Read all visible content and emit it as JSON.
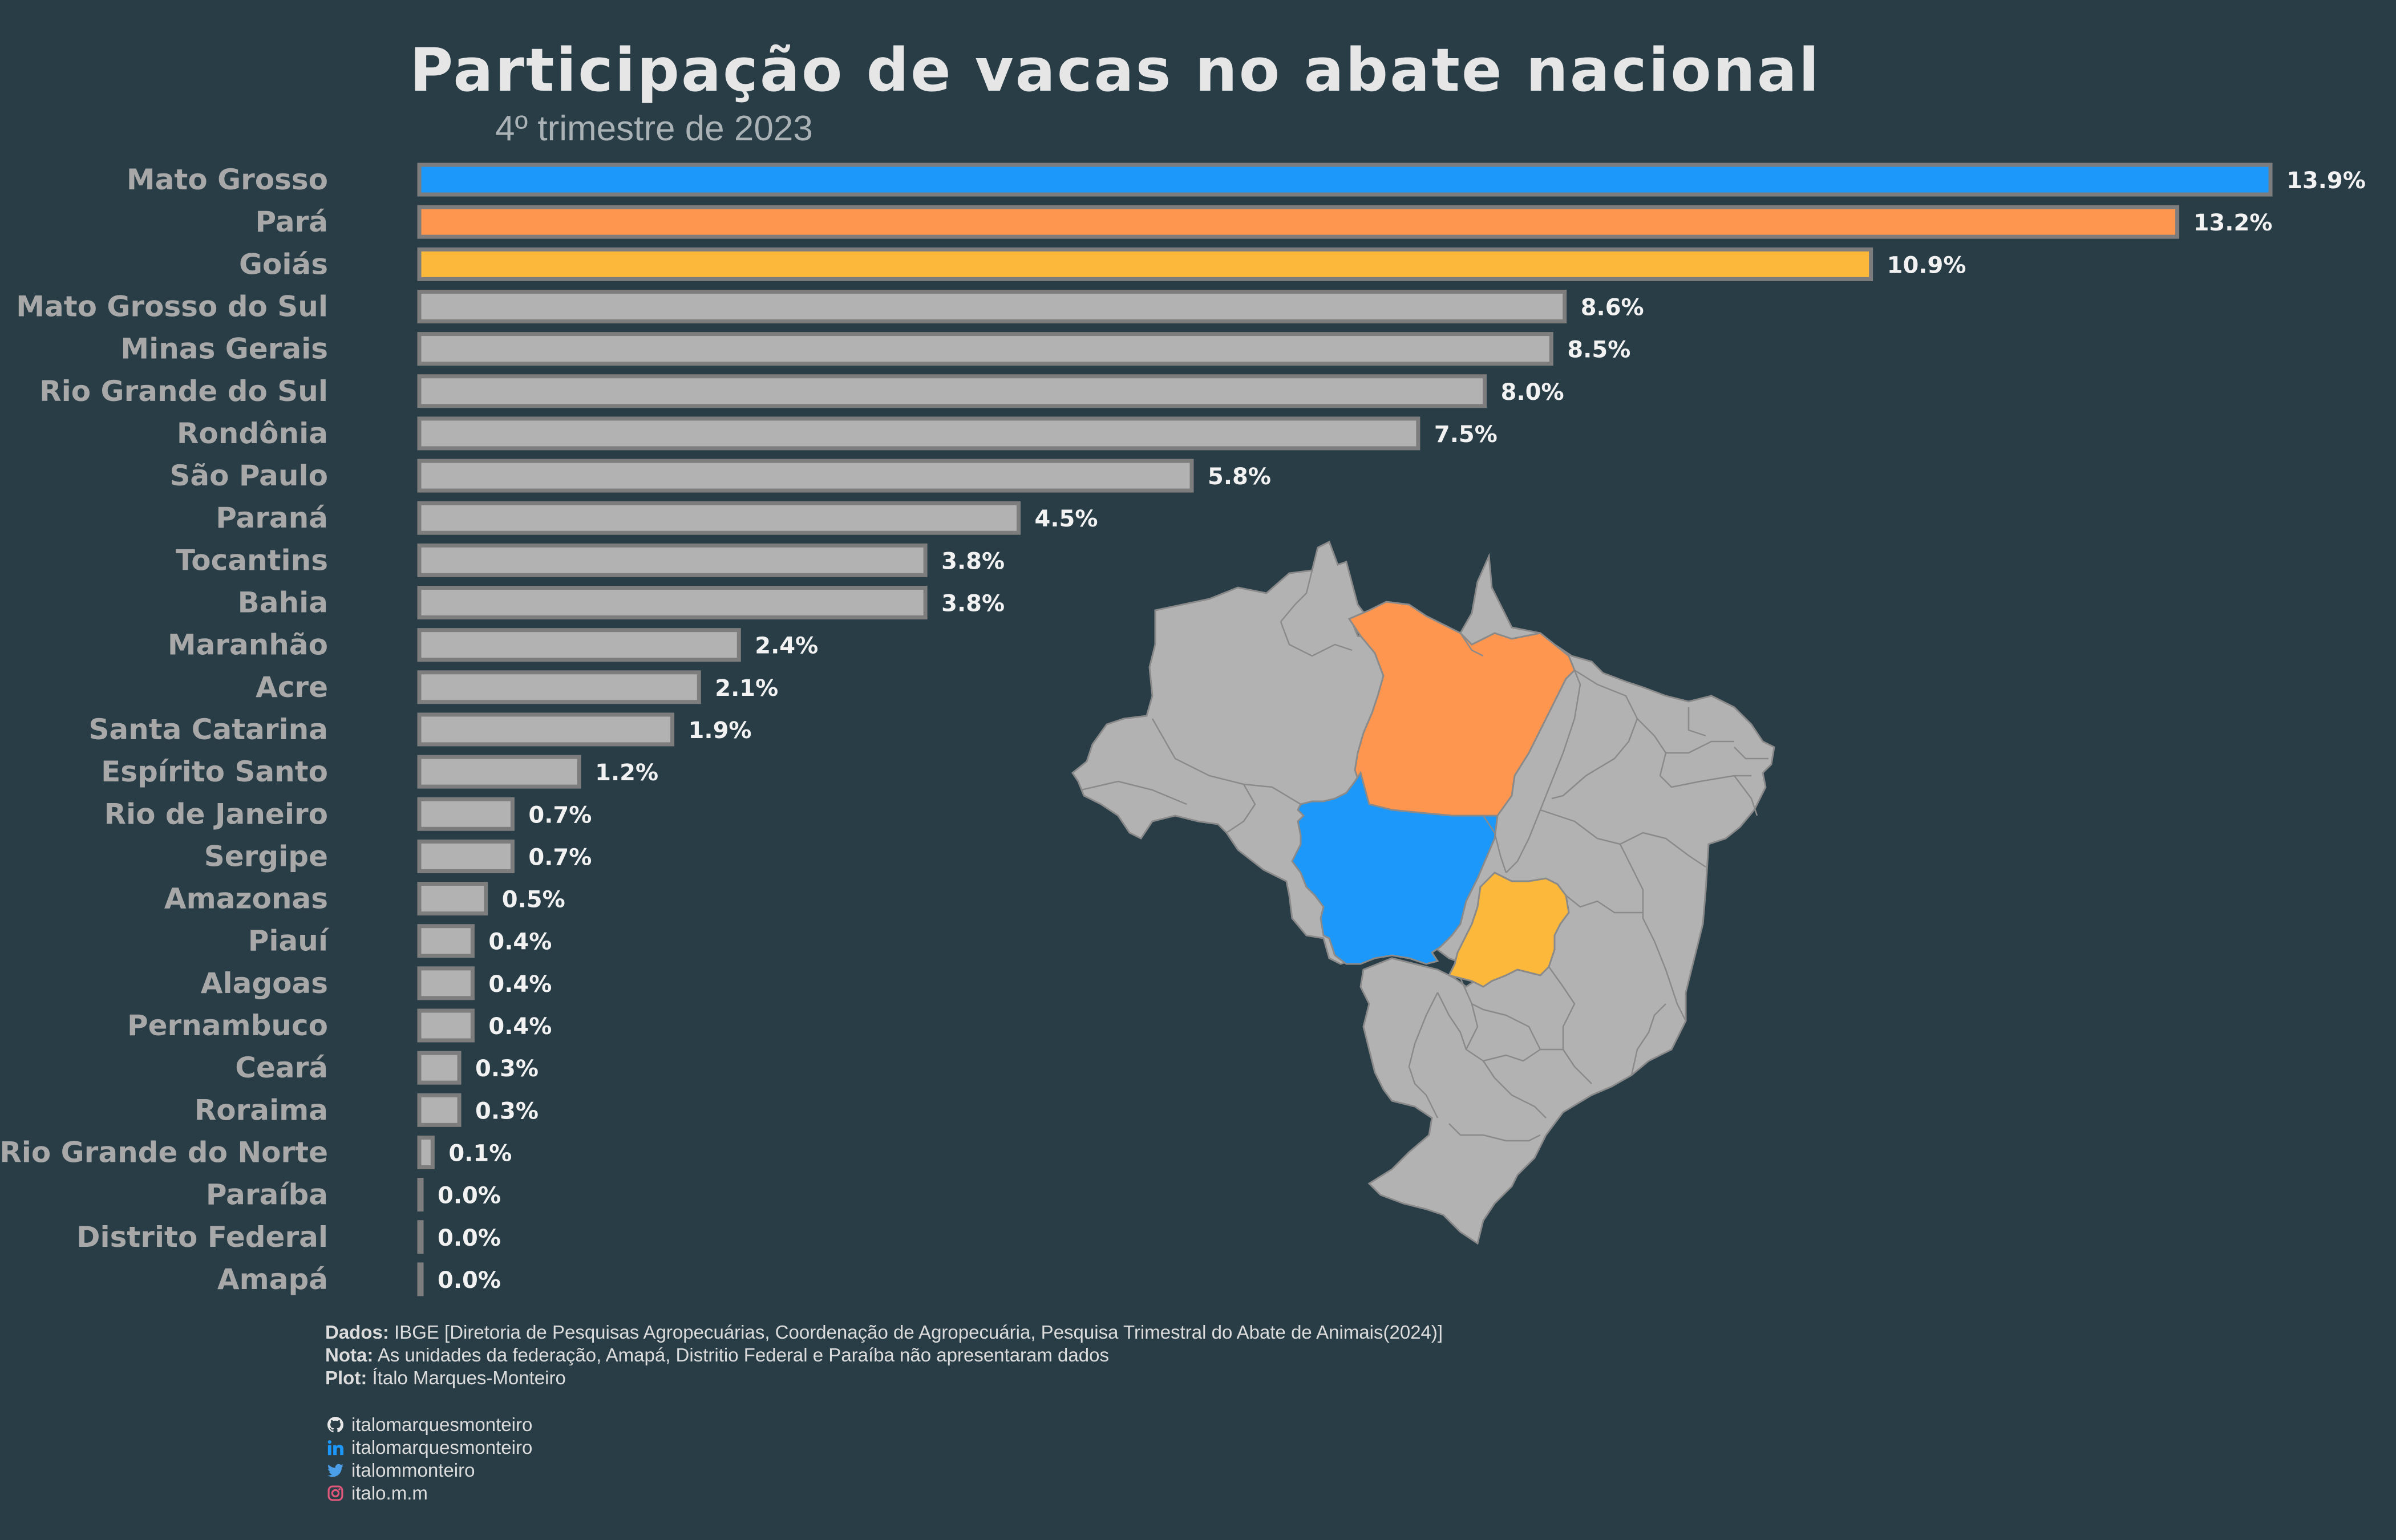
{
  "title": "Participação de vacas no abate nacional",
  "subtitle": "4º trimestre de 2023",
  "chart_data": {
    "type": "bar",
    "orientation": "horizontal",
    "title": "Participação de vacas no abate nacional",
    "subtitle": "4º trimestre de 2023",
    "xlim": [
      0,
      13.9
    ],
    "categories": [
      "Mato Grosso",
      "Pará",
      "Goiás",
      "Mato Grosso do Sul",
      "Minas Gerais",
      "Rio Grande do Sul",
      "Rondônia",
      "São Paulo",
      "Paraná",
      "Tocantins",
      "Bahia",
      "Maranhão",
      "Acre",
      "Santa Catarina",
      "Espírito Santo",
      "Rio de Janeiro",
      "Sergipe",
      "Amazonas",
      "Piauí",
      "Alagoas",
      "Pernambuco",
      "Ceará",
      "Roraima",
      "Rio Grande do Norte",
      "Paraíba",
      "Distrito Federal",
      "Amapá"
    ],
    "values": [
      13.9,
      13.2,
      10.9,
      8.6,
      8.5,
      8.0,
      7.5,
      5.8,
      4.5,
      3.8,
      3.8,
      2.4,
      2.1,
      1.9,
      1.2,
      0.7,
      0.7,
      0.5,
      0.4,
      0.4,
      0.4,
      0.3,
      0.3,
      0.1,
      0.0,
      0.0,
      0.0
    ],
    "value_labels": [
      "13.9%",
      "13.2%",
      "10.9%",
      "8.6%",
      "8.5%",
      "8.0%",
      "7.5%",
      "5.8%",
      "4.5%",
      "3.8%",
      "3.8%",
      "2.4%",
      "2.1%",
      "1.9%",
      "1.2%",
      "0.7%",
      "0.7%",
      "0.5%",
      "0.4%",
      "0.4%",
      "0.4%",
      "0.3%",
      "0.3%",
      "0.1%",
      "0.0%",
      "0.0%",
      "0.0%"
    ],
    "bar_colors": [
      "#1b98fa",
      "#fe9650",
      "#fbb83a"
    ],
    "default_color": "#b2b2b2",
    "grid": false,
    "legend": "none"
  },
  "map": {
    "highlights": [
      {
        "state": "Mato Grosso",
        "color": "#1b98fa"
      },
      {
        "state": "Pará",
        "color": "#fe9650"
      },
      {
        "state": "Goiás",
        "color": "#fbb83a"
      }
    ],
    "default_color": "#b2b2b2"
  },
  "footer": {
    "dados_label": "Dados:",
    "dados_text": "IBGE [Diretoria de Pesquisas Agropecuárias, Coordenação de Agropecuária, Pesquisa Trimestral do Abate de Animais(2024)]",
    "nota_label": "Nota:",
    "nota_text": "As unidades da federação, Amapá, Distritio Federal e Paraíba não apresentaram dados",
    "plot_label": "Plot:",
    "plot_text": "Ítalo Marques-Monteiro"
  },
  "social": {
    "github": "italomarquesmonteiro",
    "linkedin": "italomarquesmonteiro",
    "twitter": "italommonteiro",
    "instagram": "italo.m.m"
  }
}
